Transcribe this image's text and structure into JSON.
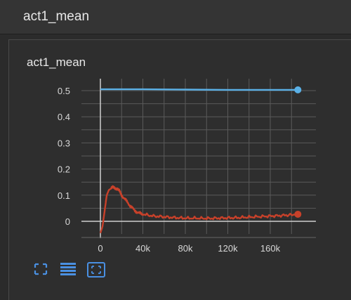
{
  "header": {
    "title": "act1_mean"
  },
  "card": {
    "title": "act1_mean"
  },
  "toolbar": {
    "fullscreen_icon": "expand-icon",
    "data_table_icon": "list-icon",
    "fit_domain_icon": "fit-domain-icon"
  },
  "colors": {
    "background": "#2b2b2b",
    "series_blue": "#5ab0e6",
    "series_red": "#c8412a",
    "toolbar_blue": "#4a90e2"
  },
  "chart_data": {
    "type": "line",
    "title": "",
    "xlabel": "",
    "ylabel": "",
    "xlim": [
      -5000,
      190000
    ],
    "ylim": [
      -0.05,
      0.53
    ],
    "x_ticks": [
      0,
      40000,
      80000,
      120000,
      160000
    ],
    "x_tick_labels": [
      "0",
      "40k",
      "80k",
      "120k",
      "160k"
    ],
    "y_ticks": [
      0,
      0.1,
      0.2,
      0.3,
      0.4,
      0.5
    ],
    "y_tick_labels": [
      "0",
      "0.1",
      "0.2",
      "0.3",
      "0.4",
      "0.5"
    ],
    "grid": true,
    "series": [
      {
        "color": "#5ab0e6",
        "x": [
          0,
          40000,
          80000,
          120000,
          160000,
          186000
        ],
        "y": [
          0.505,
          0.505,
          0.504,
          0.503,
          0.503,
          0.503
        ]
      },
      {
        "color": "#c8412a",
        "x": [
          0,
          2000,
          4000,
          6000,
          8000,
          10000,
          12000,
          14000,
          16000,
          18000,
          20000,
          24000,
          28000,
          32000,
          36000,
          40000,
          50000,
          60000,
          70000,
          80000,
          90000,
          100000,
          110000,
          120000,
          130000,
          140000,
          150000,
          160000,
          170000,
          180000,
          186000
        ],
        "y": [
          -0.045,
          -0.02,
          0.04,
          0.1,
          0.12,
          0.125,
          0.13,
          0.128,
          0.124,
          0.115,
          0.1,
          0.08,
          0.06,
          0.042,
          0.032,
          0.027,
          0.02,
          0.017,
          0.014,
          0.012,
          0.012,
          0.011,
          0.012,
          0.013,
          0.014,
          0.016,
          0.018,
          0.02,
          0.022,
          0.025,
          0.027
        ]
      }
    ]
  }
}
